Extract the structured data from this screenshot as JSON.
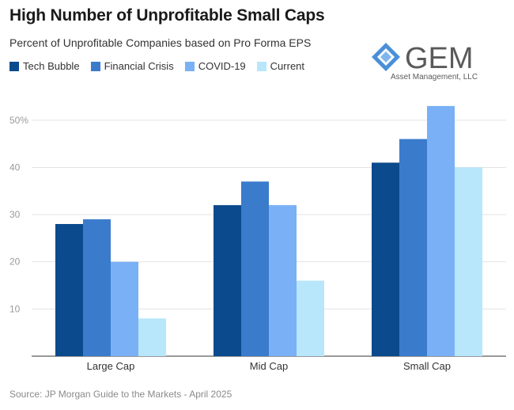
{
  "title": "High Number of Unprofitable Small Caps",
  "subtitle": "Percent of Unprofitable Companies based on Pro Forma EPS",
  "logo": {
    "text": "GEM",
    "subtext": "Asset Management, LLC"
  },
  "source": "Source: JP Morgan Guide to the Markets - April 2025",
  "chart_data": {
    "type": "bar",
    "title": "High Number of Unprofitable Small Caps",
    "subtitle": "Percent of Unprofitable Companies based on Pro Forma EPS",
    "categories": [
      "Large Cap",
      "Mid Cap",
      "Small Cap"
    ],
    "series": [
      {
        "name": "Tech Bubble",
        "color": "#0b4a8c",
        "values": [
          28,
          32,
          41
        ]
      },
      {
        "name": "Financial Crisis",
        "color": "#3a7bcc",
        "values": [
          29,
          37,
          46
        ]
      },
      {
        "name": "COVID-19",
        "color": "#7ab0f5",
        "values": [
          20,
          32,
          53
        ]
      },
      {
        "name": "Current",
        "color": "#b8e6fb",
        "values": [
          8,
          16,
          40
        ]
      }
    ],
    "yticks": [
      "10",
      "20",
      "30",
      "40",
      "50%"
    ],
    "ytick_values": [
      10,
      20,
      30,
      40,
      50
    ],
    "ylim": [
      0,
      55
    ],
    "grid": true,
    "legend": "top-left"
  }
}
